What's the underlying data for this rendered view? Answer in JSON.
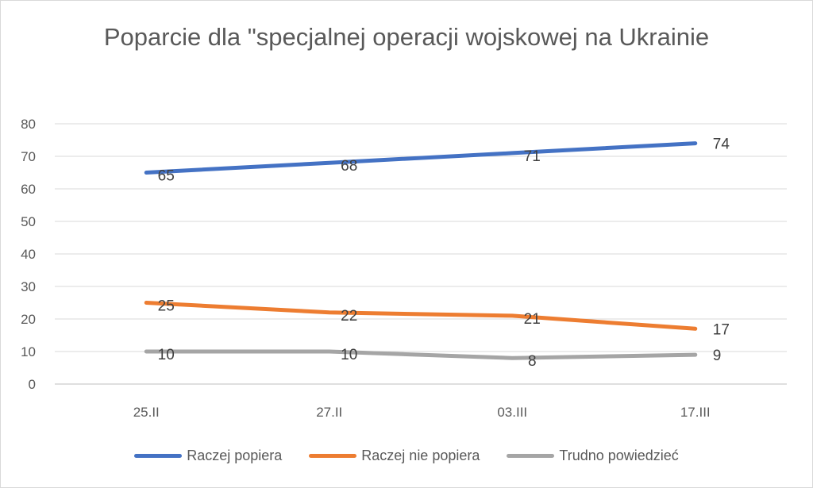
{
  "chart_data": {
    "type": "line",
    "title": "Poparcie dla \"specjalnej operacji wojskowej na Ukrainie",
    "categories": [
      "25.II",
      "27.II",
      "03.III",
      "17.III"
    ],
    "series": [
      {
        "name": "Raczej popiera",
        "values": [
          65,
          68,
          71,
          74
        ],
        "color": "#4472c4"
      },
      {
        "name": "Raczej nie popiera",
        "values": [
          25,
          22,
          21,
          17
        ],
        "color": "#ed7d31"
      },
      {
        "name": "Trudno powiedzieć",
        "values": [
          10,
          10,
          8,
          9
        ],
        "color": "#a5a5a5"
      }
    ],
    "ylim": [
      0,
      80
    ],
    "yticks": [
      0,
      10,
      20,
      30,
      40,
      50,
      60,
      70,
      80
    ],
    "grid": true,
    "legend_position": "bottom"
  }
}
